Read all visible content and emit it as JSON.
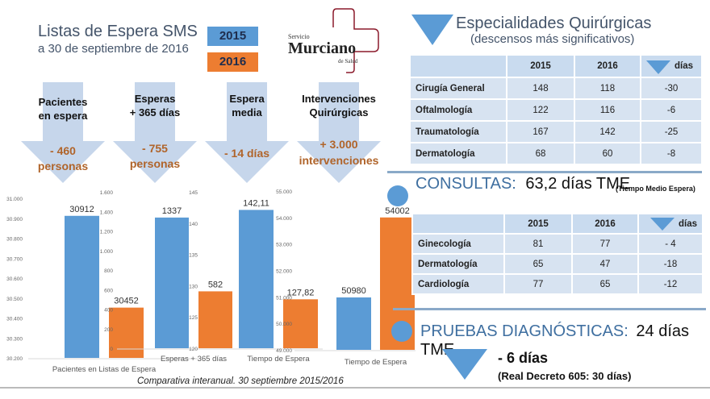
{
  "header": {
    "title": "Listas de Espera SMS",
    "subtitle": "a 30 de septiembre de 2016"
  },
  "legend": [
    {
      "label": "2015",
      "color": "#5b9bd5"
    },
    {
      "label": "2016",
      "color": "#ed7d31"
    }
  ],
  "logo": {
    "line1": "Servicio",
    "line2": "Murciano",
    "line3": "de Salud"
  },
  "summary": [
    {
      "heading1": "Pacientes",
      "heading2": "en espera",
      "value1": "- 460",
      "value2": "personas"
    },
    {
      "heading1": "Esperas",
      "heading2": "+ 365 días",
      "value1": "- 755",
      "value2": "personas"
    },
    {
      "heading1": "Espera",
      "heading2": "media",
      "value1": "- 14 días",
      "value2": ""
    },
    {
      "heading1": "Intervenciones",
      "heading2": "Quirúrgicas",
      "value1": "+ 3.000",
      "value2": "intervenciones"
    }
  ],
  "chart_data": [
    {
      "type": "bar",
      "category": "Pacientes en Listas de Espera",
      "series": [
        {
          "name": "2015",
          "value": 30912,
          "label": "30912"
        },
        {
          "name": "2016",
          "value": 30452,
          "label": "30452"
        }
      ],
      "ylim": [
        30200,
        31000
      ],
      "ticks": [
        "30.200",
        "30.300",
        "30.400",
        "30.500",
        "30.600",
        "30.700",
        "30.800",
        "30.900",
        "31.000"
      ]
    },
    {
      "type": "bar",
      "category": "Esperas + 365 días",
      "series": [
        {
          "name": "2015",
          "value": 1337,
          "label": "1337"
        },
        {
          "name": "2016",
          "value": 582,
          "label": "582"
        }
      ],
      "ylim": [
        0,
        1600
      ],
      "ticks": [
        "0",
        "200",
        "400",
        "600",
        "800",
        "1.000",
        "1.200",
        "1.400",
        "1.600"
      ]
    },
    {
      "type": "bar",
      "category": "Tiempo de Espera",
      "series": [
        {
          "name": "2015",
          "value": 142.11,
          "label": "142,11"
        },
        {
          "name": "2016",
          "value": 127.82,
          "label": "127,82"
        }
      ],
      "ylim": [
        120,
        145
      ],
      "ticks": [
        "120",
        "125",
        "130",
        "135",
        "140",
        "145"
      ]
    },
    {
      "type": "bar",
      "category": "Tiempo de Espera",
      "series": [
        {
          "name": "2015",
          "value": 50980,
          "label": "50980"
        },
        {
          "name": "2016",
          "value": 54002,
          "label": "54002"
        }
      ],
      "ylim": [
        49000,
        55000
      ],
      "ticks": [
        "49.000",
        "50.000",
        "51.000",
        "52.000",
        "53.000",
        "54.000",
        "55.000"
      ]
    }
  ],
  "caption": "Comparativa interanual. 30 septiembre 2015/2016",
  "surgical": {
    "title": "Especialidades Quirúrgicas",
    "subtitle": "(descensos más significativos)",
    "columns": [
      "",
      "2015",
      "2016",
      "días"
    ],
    "rows": [
      [
        "Cirugía General",
        "148",
        "118",
        "-30"
      ],
      [
        "Oftalmología",
        "122",
        "116",
        "-6"
      ],
      [
        "Traumatología",
        "167",
        "142",
        "-25"
      ],
      [
        "Dermatología",
        "68",
        "60",
        "-8"
      ]
    ]
  },
  "consultas": {
    "label": "CONSULTAS:",
    "value": "63,2 días TME",
    "note": "(Tiempo Medio Espera)",
    "columns": [
      "",
      "2015",
      "2016",
      "días"
    ],
    "rows": [
      [
        "Ginecología",
        "81",
        "77",
        "- 4"
      ],
      [
        "Dermatología",
        "65",
        "47",
        "-18"
      ],
      [
        "Cardiología",
        "77",
        "65",
        "-12"
      ]
    ]
  },
  "pruebas": {
    "label": "PRUEBAS DIAGNÓSTICAS:",
    "value": "24 días TME",
    "change": "- 6 días",
    "note": "(Real Decreto 605: 30 días)"
  },
  "colors": {
    "blue": "#5b9bd5",
    "orange": "#ed7d31",
    "arrow": "#c6d6eb",
    "title": "#44546a"
  }
}
